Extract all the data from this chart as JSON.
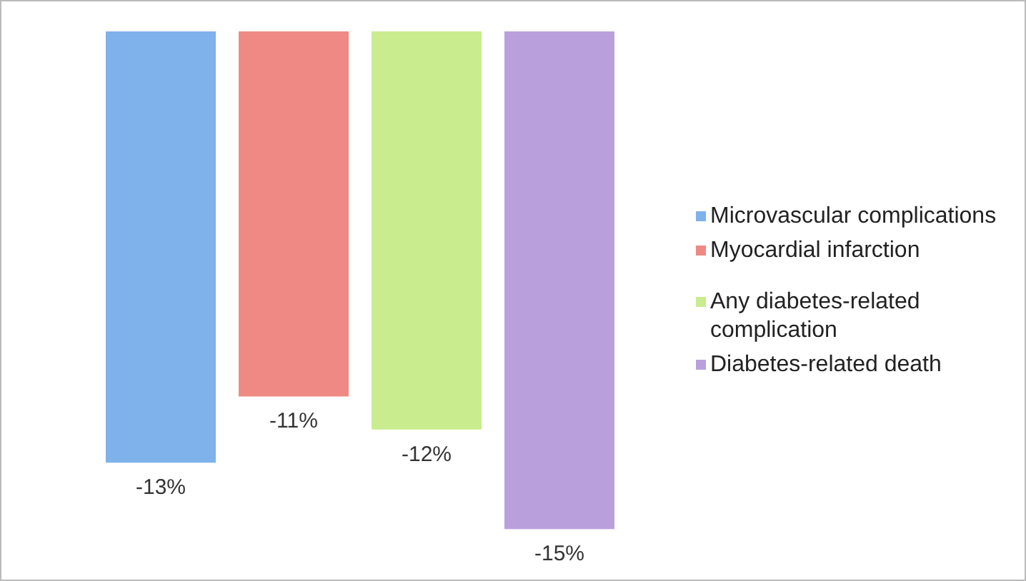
{
  "chart_data": {
    "type": "bar",
    "categories": [
      null
    ],
    "legend": "right",
    "series": [
      {
        "name": "Microvascular complications",
        "color": "#7fb1ea",
        "values": [
          -13
        ],
        "value_labels": [
          "-13%"
        ]
      },
      {
        "name": "Myocardial infarction",
        "color": "#ee8a83",
        "values": [
          -11
        ],
        "value_labels": [
          "-11%"
        ]
      },
      {
        "name": "Any diabetes-related complication",
        "color": "#c9ec8f",
        "values": [
          -12
        ],
        "value_labels": [
          "-12%"
        ]
      },
      {
        "name": "Diabetes-related death",
        "color": "#b9a0dc",
        "values": [
          -15
        ],
        "value_labels": [
          "-15%"
        ]
      }
    ]
  }
}
